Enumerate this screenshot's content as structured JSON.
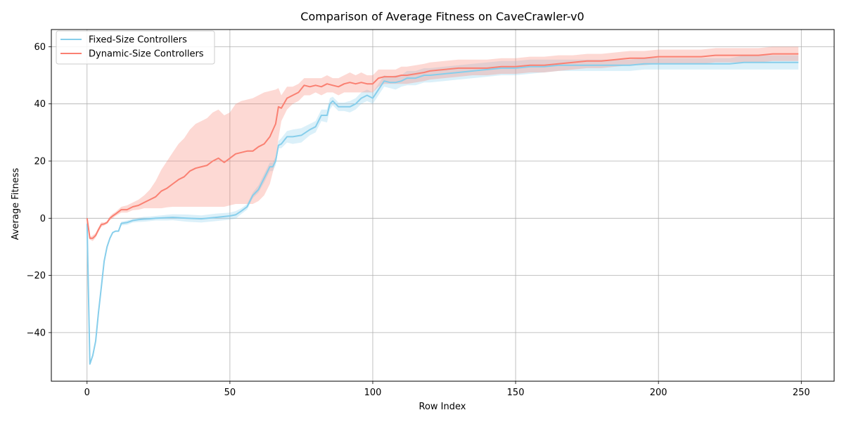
{
  "chart_data": {
    "type": "line",
    "title": "Comparison of Average Fitness on CaveCrawler-v0",
    "xlabel": "Row Index",
    "ylabel": "Average Fitness",
    "xlim": [
      -12.5,
      261.5
    ],
    "ylim": [
      -57,
      66
    ],
    "xticks": [
      0,
      50,
      100,
      150,
      200,
      250
    ],
    "yticks": [
      -40,
      -20,
      0,
      20,
      40,
      60
    ],
    "xtick_labels": [
      "0",
      "50",
      "100",
      "150",
      "200",
      "250"
    ],
    "ytick_labels": [
      "−40",
      "−20",
      "0",
      "20",
      "40",
      "60"
    ],
    "grid": true,
    "legend_position": "upper-left",
    "series": [
      {
        "name": "Fixed-Size Controllers",
        "color": "#87ceeb",
        "x": [
          0,
          1,
          2,
          3,
          4,
          5,
          6,
          7,
          8,
          9,
          10,
          11,
          12,
          14,
          16,
          18,
          20,
          22,
          24,
          26,
          28,
          30,
          35,
          40,
          45,
          50,
          52,
          54,
          56,
          58,
          60,
          62,
          64,
          65,
          66,
          67,
          68,
          70,
          72,
          75,
          78,
          80,
          82,
          84,
          85,
          86,
          88,
          90,
          92,
          94,
          96,
          98,
          100,
          102,
          104,
          106,
          108,
          110,
          112,
          115,
          118,
          120,
          125,
          130,
          135,
          140,
          145,
          150,
          155,
          160,
          165,
          170,
          175,
          180,
          185,
          190,
          195,
          200,
          205,
          210,
          215,
          220,
          225,
          230,
          235,
          240,
          245,
          249
        ],
        "mean": [
          -2,
          -51,
          -48,
          -43,
          -33,
          -24,
          -15,
          -10,
          -7,
          -5,
          -4.5,
          -4.5,
          -1.8,
          -1.5,
          -0.8,
          -0.5,
          -0.3,
          -0.2,
          0,
          0.1,
          0.2,
          0.3,
          0,
          -0.2,
          0.3,
          0.8,
          1.2,
          2.5,
          4,
          8,
          10,
          14,
          18,
          18,
          20,
          25.5,
          26,
          28.5,
          28.5,
          29,
          31,
          32,
          36,
          36,
          40,
          41,
          39,
          39,
          39,
          40,
          42,
          43,
          42,
          45,
          48,
          47.5,
          47.5,
          48,
          49,
          49,
          50,
          50,
          50.5,
          51,
          51.5,
          52,
          52.5,
          52.5,
          53,
          53,
          53.5,
          53.5,
          53.5,
          53.5,
          53.5,
          53.5,
          54,
          54,
          54,
          54,
          54,
          54,
          54,
          54.5,
          54.5,
          54.5,
          54.5,
          54.5
        ],
        "lower": [
          -2,
          -51,
          -48,
          -43,
          -33,
          -24,
          -15,
          -10,
          -7,
          -5,
          -4.5,
          -4.5,
          -2.5,
          -2.3,
          -1.5,
          -1.3,
          -1.2,
          -1,
          -0.8,
          -0.8,
          -0.8,
          -0.7,
          -1.2,
          -1.5,
          -1,
          -0.5,
          -0.2,
          1.5,
          3,
          7,
          9,
          12.5,
          16.5,
          16.5,
          18.5,
          24.5,
          24.5,
          26.5,
          26,
          26.5,
          29,
          30,
          34,
          33.5,
          38,
          39.5,
          37.5,
          37.5,
          37,
          38,
          40,
          41,
          40,
          43,
          46,
          45.5,
          45,
          46,
          46.5,
          46.5,
          47.5,
          47.5,
          48,
          48.5,
          49,
          49.5,
          50,
          50,
          50.5,
          51,
          51.5,
          51.5,
          51.5,
          51.5,
          51.5,
          51.5,
          52,
          52,
          52,
          52,
          52,
          52,
          52,
          52,
          52,
          52,
          52,
          52
        ],
        "upper": [
          -2,
          -51,
          -48,
          -43,
          -33,
          -24,
          -15,
          -10,
          -7,
          -5,
          -4.5,
          -4.5,
          -1.2,
          -0.8,
          -0.2,
          0.2,
          0.5,
          0.6,
          0.8,
          1,
          1.2,
          1.4,
          1.3,
          1,
          1.6,
          2,
          2.5,
          3.5,
          5,
          9,
          11.5,
          15.5,
          19.5,
          19.5,
          21.5,
          27,
          28,
          30.5,
          31,
          31.5,
          33,
          34,
          38,
          38,
          42,
          42.5,
          40.5,
          40.5,
          41,
          42,
          44,
          45,
          44,
          47,
          50,
          49.5,
          50,
          50,
          51.5,
          51.5,
          52.5,
          52.5,
          53,
          53.5,
          54,
          54.5,
          55,
          55,
          55.5,
          55.5,
          55.5,
          55.5,
          55.5,
          55.5,
          55.5,
          55.5,
          56,
          56,
          56,
          56,
          56,
          56,
          56,
          57,
          57,
          57,
          57,
          57
        ]
      },
      {
        "name": "Dynamic-Size Controllers",
        "color": "#fa8072",
        "x": [
          0,
          1,
          2,
          3,
          4,
          5,
          6,
          7,
          8,
          9,
          10,
          12,
          14,
          16,
          18,
          20,
          22,
          24,
          26,
          28,
          30,
          32,
          34,
          36,
          38,
          40,
          42,
          44,
          46,
          48,
          50,
          52,
          54,
          56,
          58,
          60,
          62,
          64,
          66,
          67,
          68,
          70,
          72,
          74,
          76,
          78,
          80,
          82,
          84,
          86,
          88,
          90,
          92,
          94,
          96,
          98,
          100,
          102,
          104,
          106,
          108,
          110,
          112,
          115,
          118,
          120,
          125,
          130,
          135,
          140,
          145,
          150,
          155,
          160,
          165,
          170,
          175,
          180,
          185,
          190,
          195,
          200,
          205,
          210,
          215,
          220,
          225,
          230,
          235,
          240,
          245,
          249
        ],
        "mean": [
          0,
          -7,
          -7,
          -6,
          -4,
          -2.2,
          -2,
          -1.5,
          0,
          0.8,
          1.5,
          3,
          3,
          4,
          4.5,
          5.5,
          6.5,
          7.5,
          9.5,
          10.5,
          12,
          13.5,
          14.5,
          16.5,
          17.5,
          18,
          18.5,
          20,
          21,
          19.5,
          21,
          22.5,
          23,
          23.5,
          23.5,
          25,
          26,
          28.5,
          33,
          39,
          38.5,
          42,
          43,
          44,
          46.5,
          46,
          46.5,
          46,
          47,
          46.5,
          46,
          47,
          47.5,
          47,
          47.5,
          47,
          47,
          49,
          49.5,
          49.5,
          49.5,
          50,
          50,
          50.5,
          51,
          51.5,
          52,
          52.5,
          52.5,
          52.5,
          53,
          53,
          53.5,
          53.5,
          54,
          54.5,
          55,
          55,
          55.5,
          56,
          56,
          56.5,
          56.5,
          56.5,
          56.5,
          57,
          57,
          57,
          57,
          57.5,
          57.5,
          57.5
        ],
        "lower": [
          0,
          -7.5,
          -8,
          -6.8,
          -4.8,
          -3,
          -2.5,
          -2,
          -0.7,
          0,
          0.8,
          2,
          2,
          2.8,
          3,
          3.5,
          3.5,
          3.5,
          3.5,
          3.8,
          4,
          4,
          4,
          4,
          4,
          4,
          4,
          4,
          4,
          4,
          4.5,
          5,
          5,
          5,
          5,
          6,
          8,
          12,
          20,
          28,
          34,
          38,
          40,
          41,
          43,
          43,
          44,
          43,
          44,
          44,
          43,
          44,
          44,
          44,
          44,
          44,
          44,
          46,
          47,
          47,
          47,
          47,
          47,
          47.5,
          48,
          48.5,
          49,
          49.5,
          50,
          50,
          50.5,
          50.5,
          51,
          51,
          51.5,
          52,
          52.5,
          52.5,
          53,
          53.5,
          53.5,
          54,
          54,
          54,
          54,
          54.5,
          54.5,
          54.5,
          54.5,
          55,
          55,
          55
        ],
        "upper": [
          0,
          -6.5,
          -6,
          -5.2,
          -3.2,
          -1.4,
          -1.5,
          -1,
          0.7,
          1.6,
          2.2,
          4,
          4.5,
          5.5,
          6.5,
          8,
          10,
          13,
          17,
          20,
          23,
          26,
          28,
          31,
          33,
          34,
          35,
          37,
          38,
          36,
          37,
          40,
          41,
          41.5,
          42,
          43,
          44,
          44.5,
          45,
          45.5,
          43,
          46,
          46,
          47,
          49,
          49,
          49,
          49,
          50,
          49,
          49,
          50,
          51,
          50,
          51,
          50,
          50,
          52,
          52,
          52,
          52,
          53,
          53,
          53.5,
          54,
          54.5,
          55,
          55.5,
          55.5,
          55.5,
          56,
          56,
          56.5,
          56.5,
          57,
          57,
          57.5,
          57.5,
          58,
          58.5,
          58.5,
          59,
          59,
          59,
          59,
          59.5,
          59.5,
          59.5,
          59.5,
          60,
          60,
          60
        ]
      }
    ]
  }
}
